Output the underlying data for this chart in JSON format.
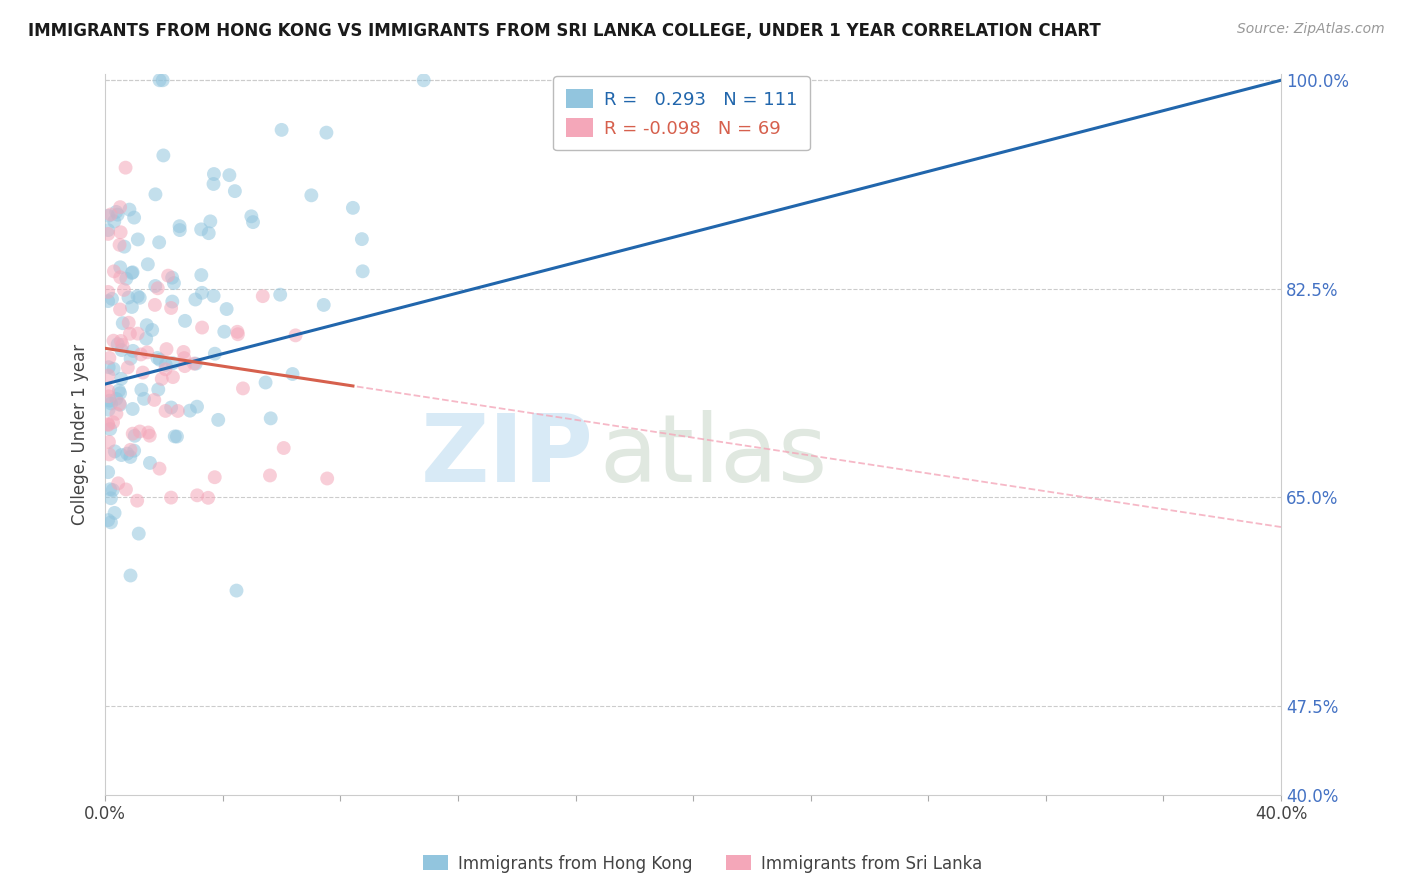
{
  "title": "IMMIGRANTS FROM HONG KONG VS IMMIGRANTS FROM SRI LANKA COLLEGE, UNDER 1 YEAR CORRELATION CHART",
  "source": "Source: ZipAtlas.com",
  "ylabel": "College, Under 1 year",
  "hk_R": 0.293,
  "hk_N": 111,
  "sl_R": -0.098,
  "sl_N": 69,
  "xmin": 0.0,
  "xmax": 0.4,
  "ymin": 0.4,
  "ymax": 1.005,
  "ytick_vals": [
    0.475,
    0.65,
    0.825,
    1.0
  ],
  "ytick_labels": [
    "47.5%",
    "65.0%",
    "82.5%",
    "100.0%"
  ],
  "y_right_extra": [
    0.4
  ],
  "y_right_extra_labels": [
    "40.0%"
  ],
  "hk_color": "#92c5de",
  "sl_color": "#f4a7b9",
  "hk_line_color": "#2166ac",
  "sl_line_color": "#d6604d",
  "sl_dash_color": "#f4a7b9",
  "watermark_color": "#d8eaf6",
  "title_fontsize": 12,
  "source_fontsize": 10,
  "ylabel_fontsize": 12,
  "tick_fontsize": 12,
  "legend_fontsize": 13,
  "point_size": 100,
  "point_alpha": 0.55
}
